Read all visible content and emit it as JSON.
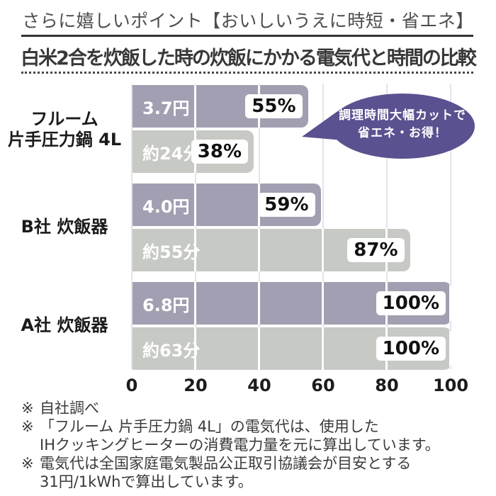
{
  "header": {
    "note": "さらに嬉しいポイント【おいしいうえに時短・省エネ】",
    "title": "白米2合を炊飯した時の炊飯にかかる電気代と時間の比較"
  },
  "bubble": {
    "line1": "調理時間大幅カットで",
    "line2": "省エネ・お得！",
    "fill_color": "#5a5190"
  },
  "colors": {
    "cost_bar": "#a19fb1",
    "time_bar": "#c6c9c4",
    "gridline": "#e3e3e9",
    "title_text": "#383838"
  },
  "chart_data": {
    "type": "bar",
    "orientation": "horizontal",
    "xlim": [
      0,
      100
    ],
    "x_ticks": [
      "0",
      "20",
      "40",
      "60",
      "80",
      "100"
    ],
    "grid": true,
    "series_names": [
      "電気代(円)",
      "時間(分)"
    ],
    "rows": [
      {
        "category": "フルーム 片手圧力鍋 4L",
        "category_lines": [
          "フルーム",
          "片手圧力鍋 4L"
        ],
        "cost": {
          "label": "3.7円",
          "value": 55,
          "badge": "55%"
        },
        "time": {
          "label": "約24分",
          "value": 38,
          "badge": "38%"
        }
      },
      {
        "category": "B社 炊飯器",
        "category_lines": [
          "B社 炊飯器"
        ],
        "cost": {
          "label": "4.0円",
          "value": 59,
          "badge": "59%"
        },
        "time": {
          "label": "約55分",
          "value": 87,
          "badge": "87%"
        }
      },
      {
        "category": "A社 炊飯器",
        "category_lines": [
          "A社 炊飯器"
        ],
        "cost": {
          "label": "6.8円",
          "value": 100,
          "badge": "100%"
        },
        "time": {
          "label": "約63分",
          "value": 100,
          "badge": "100%"
        }
      }
    ]
  },
  "footnotes": [
    {
      "mark": "※",
      "lines": [
        "自社調べ"
      ]
    },
    {
      "mark": "※",
      "lines": [
        "「フルーム 片手圧力鍋 4L」の電気代は、使用した",
        "IHクッキングヒーターの消費電力量を元に算出しています。"
      ]
    },
    {
      "mark": "※",
      "lines": [
        "電気代は全国家庭電気製品公正取引協議会が目安とする",
        "31円/1kWhで算出しています。"
      ]
    }
  ]
}
